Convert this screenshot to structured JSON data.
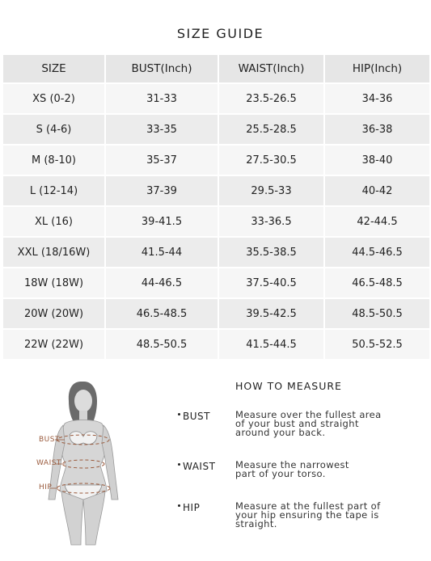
{
  "title": "SIZE GUIDE",
  "table": {
    "headers": [
      "SIZE",
      "BUST(Inch)",
      "WAIST(Inch)",
      "HIP(Inch)"
    ],
    "rows": [
      [
        "XS (0-2)",
        "31-33",
        "23.5-26.5",
        "34-36"
      ],
      [
        "S (4-6)",
        "33-35",
        "25.5-28.5",
        "36-38"
      ],
      [
        "M (8-10)",
        "35-37",
        "27.5-30.5",
        "38-40"
      ],
      [
        "L (12-14)",
        "37-39",
        "29.5-33",
        "40-42"
      ],
      [
        "XL (16)",
        "39-41.5",
        "33-36.5",
        "42-44.5"
      ],
      [
        "XXL (18/16W)",
        "41.5-44",
        "35.5-38.5",
        "44.5-46.5"
      ],
      [
        "18W (18W)",
        "44-46.5",
        "37.5-40.5",
        "46.5-48.5"
      ],
      [
        "20W (20W)",
        "46.5-48.5",
        "39.5-42.5",
        "48.5-50.5"
      ],
      [
        "22W (22W)",
        "48.5-50.5",
        "41.5-44.5",
        "50.5-52.5"
      ]
    ]
  },
  "figure": {
    "labels": {
      "bust": "BUST",
      "waist": "WAIST",
      "hip": "HIP"
    },
    "accent_color": "#9a5a3c"
  },
  "how_to_measure": {
    "title": "HOW TO MEASURE",
    "items": [
      {
        "label": "BUST",
        "desc": [
          "Measure over the fullest area",
          "of your bust and straight",
          "around your back."
        ]
      },
      {
        "label": "WAIST",
        "desc": [
          "Measure the narrowest",
          "part of your torso."
        ]
      },
      {
        "label": "HIP",
        "desc": [
          "Measure at the fullest part of",
          "your hip ensuring the tape is",
          "straight."
        ]
      }
    ]
  }
}
